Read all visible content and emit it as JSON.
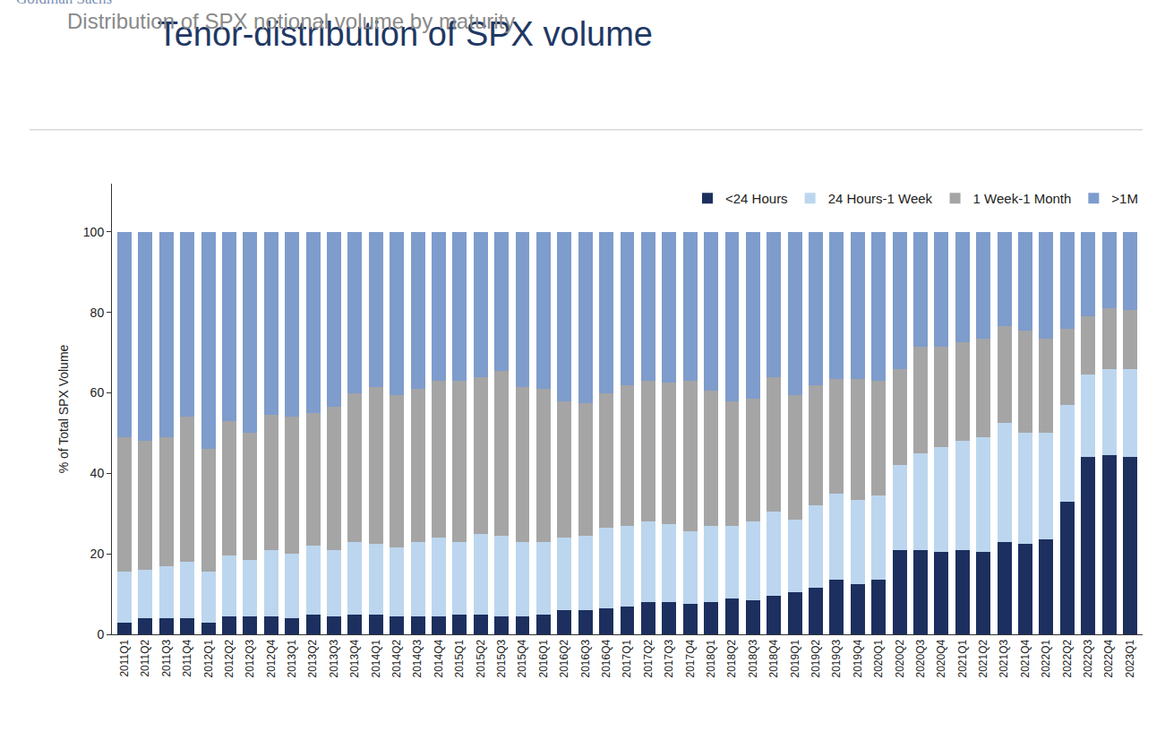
{
  "chart_data": {
    "type": "bar",
    "title": "Tenor-distribution of SPX volume",
    "subtitle": "Distribution of SPX notional volume by maturity",
    "annotations": [
      "Goldman Sachs"
    ],
    "y_label": "% of Total SPX Volume",
    "stacked": true,
    "grid": false,
    "legend": "top right",
    "categories": [
      "2011Q1",
      "2011Q2",
      "2011Q3",
      "2011Q4",
      "2012Q1",
      "2012Q2",
      "2012Q3",
      "2012Q4",
      "2013Q1",
      "2013Q2",
      "2013Q3",
      "2013Q4",
      "2014Q1",
      "2014Q2",
      "2014Q3",
      "2014Q4",
      "2015Q1",
      "2015Q2",
      "2015Q3",
      "2015Q4",
      "2016Q1",
      "2016Q2",
      "2016Q3",
      "2016Q4",
      "2017Q1",
      "2017Q2",
      "2017Q3",
      "2017Q4",
      "2018Q1",
      "2018Q2",
      "2018Q3",
      "2018Q4",
      "2019Q1",
      "2019Q2",
      "2019Q3",
      "2019Q4",
      "2020Q1",
      "2020Q2",
      "2020Q3",
      "2020Q4",
      "2021Q1",
      "2021Q2",
      "2021Q3",
      "2021Q4",
      "2022Q1",
      "2022Q2",
      "2022Q3",
      "2022Q4",
      "2023Q1"
    ],
    "ylim": [
      0,
      112
    ],
    "yticks": [
      0,
      20,
      40,
      60,
      80,
      100
    ],
    "series": [
      {
        "name": "<24 Hours",
        "color": "#1c2f5e",
        "values": [
          3,
          4,
          4,
          4,
          3,
          4.5,
          4.5,
          4.5,
          4,
          5,
          4.5,
          5,
          5,
          4.5,
          4.5,
          4.5,
          5,
          5,
          4.5,
          4.5,
          5,
          6,
          6,
          6.5,
          7,
          8,
          8,
          7.5,
          8,
          9,
          8.5,
          9.5,
          10.5,
          11.5,
          13.5,
          12.5,
          13.5,
          21,
          21,
          20.5,
          21,
          20.5,
          23,
          22.5,
          23.5,
          33,
          44,
          44.5,
          44
        ]
      },
      {
        "name": "24 Hours-1 Week",
        "color": "#bcd6ef",
        "values": [
          12.5,
          12,
          13,
          14,
          12.5,
          15,
          14,
          16.5,
          16,
          17,
          16.5,
          18,
          17.5,
          17,
          18.5,
          19.5,
          18,
          20,
          20,
          18.5,
          18,
          18,
          18.5,
          20,
          20,
          20,
          19.5,
          18,
          19,
          18,
          19.5,
          21,
          18,
          20.5,
          21.5,
          21,
          21,
          21,
          24,
          26,
          27,
          28.5,
          29.5,
          27.5,
          26.5,
          24,
          20.5,
          21.5,
          22
        ]
      },
      {
        "name": "1 Week-1 Month",
        "color": "#a5a5a5",
        "values": [
          33.5,
          32,
          32,
          36,
          30.5,
          33.5,
          31.5,
          33.5,
          34,
          33,
          35.5,
          37,
          39,
          38,
          38,
          39,
          40,
          39,
          41,
          38.5,
          38,
          34,
          33,
          33.5,
          35,
          35,
          35,
          37.5,
          33.5,
          31,
          30.5,
          33.5,
          31,
          30,
          28.5,
          30,
          28.5,
          24,
          26.5,
          25,
          24.5,
          24.5,
          24,
          25.5,
          23.5,
          19,
          14.5,
          15,
          14.5
        ]
      },
      {
        "name": ">1M",
        "color": "#7e9ccc",
        "values": [
          51,
          52,
          51,
          46,
          54,
          47,
          50,
          45.5,
          46,
          45,
          43.5,
          40,
          38.5,
          40.5,
          39,
          37,
          37,
          36,
          34.5,
          38.5,
          39,
          42,
          42.5,
          40,
          38,
          37,
          37.5,
          37,
          39.5,
          42,
          41.5,
          36,
          40.5,
          38,
          36.5,
          36.5,
          37,
          34,
          28.5,
          28.5,
          27.5,
          26.5,
          23.5,
          24.5,
          26.5,
          24,
          21,
          19,
          19.5
        ]
      }
    ]
  }
}
